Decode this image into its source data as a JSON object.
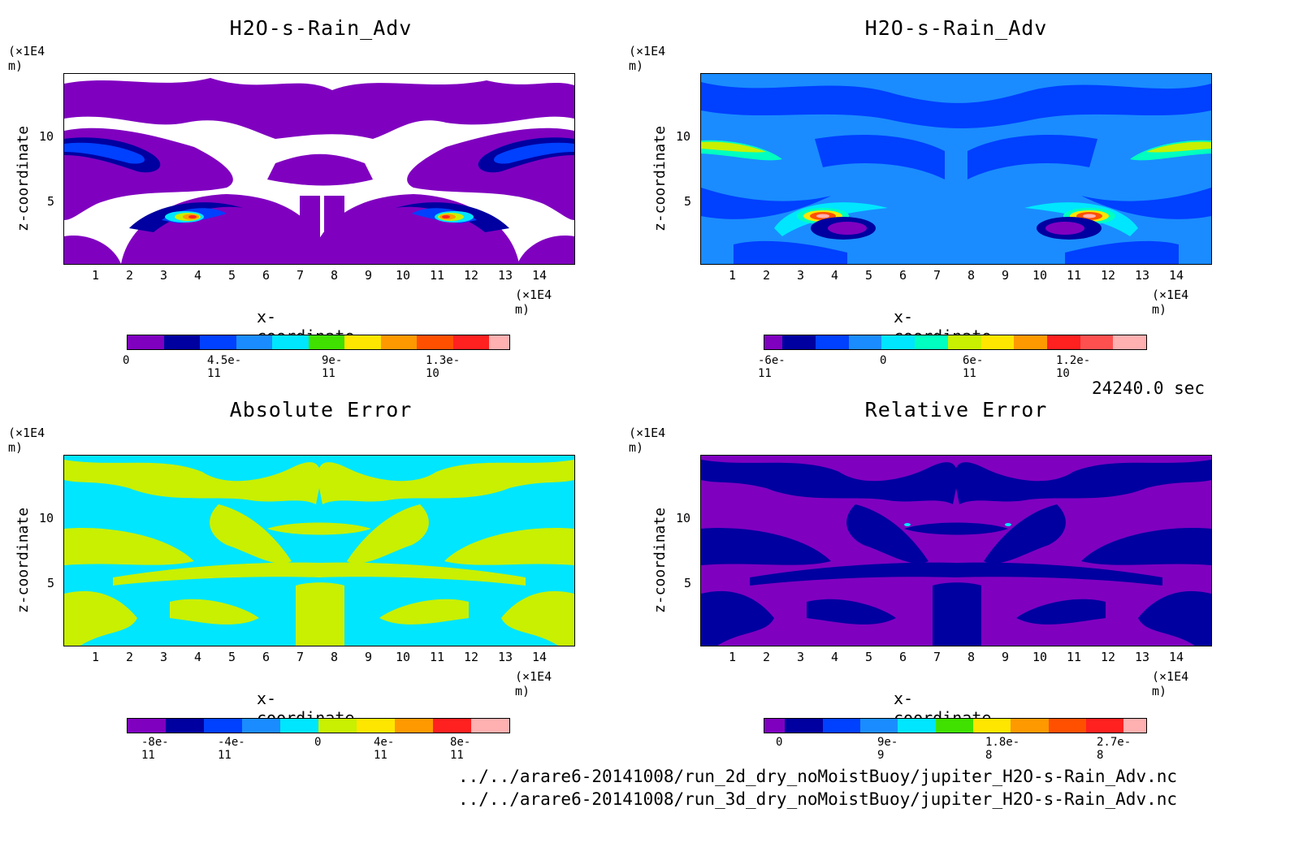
{
  "panels": [
    {
      "title": "H2O-s-Rain_Adv",
      "yunit": "(×1E4 m)",
      "xunit": "(×1E4 m)",
      "ylabel": "z-coordinate",
      "xlabel": "x-coordinate",
      "xticks": [
        "1",
        "2",
        "3",
        "4",
        "5",
        "6",
        "7",
        "8",
        "9",
        "10",
        "11",
        "12",
        "13",
        "14"
      ],
      "yticks": [
        "10",
        "5"
      ],
      "cbar_labels": [
        "0",
        "4.5e-11",
        "9e-11",
        "1.3e-10"
      ]
    },
    {
      "title": "H2O-s-Rain_Adv",
      "yunit": "(×1E4 m)",
      "xunit": "(×1E4 m)",
      "ylabel": "z-coordinate",
      "xlabel": "x-coordinate",
      "xticks": [
        "1",
        "2",
        "3",
        "4",
        "5",
        "6",
        "7",
        "8",
        "9",
        "10",
        "11",
        "12",
        "13",
        "14"
      ],
      "yticks": [
        "10",
        "5"
      ],
      "cbar_labels": [
        "-6e-11",
        "0",
        "6e-11",
        "1.2e-10"
      ]
    },
    {
      "title": "Absolute Error",
      "yunit": "(×1E4 m)",
      "xunit": "(×1E4 m)",
      "ylabel": "z-coordinate",
      "xlabel": "x-coordinate",
      "xticks": [
        "1",
        "2",
        "3",
        "4",
        "5",
        "6",
        "7",
        "8",
        "9",
        "10",
        "11",
        "12",
        "13",
        "14"
      ],
      "yticks": [
        "10",
        "5"
      ],
      "cbar_labels": [
        "-8e-11",
        "-4e-11",
        "0",
        "4e-11",
        "8e-11"
      ]
    },
    {
      "title": "Relative Error",
      "yunit": "(×1E4 m)",
      "xunit": "(×1E4 m)",
      "ylabel": "z-coordinate",
      "xlabel": "x-coordinate",
      "xticks": [
        "1",
        "2",
        "3",
        "4",
        "5",
        "6",
        "7",
        "8",
        "9",
        "10",
        "11",
        "12",
        "13",
        "14"
      ],
      "yticks": [
        "10",
        "5"
      ],
      "cbar_labels": [
        "0",
        "9e-9",
        "1.8e-8",
        "2.7e-8"
      ]
    }
  ],
  "time_label": "24240.0 sec",
  "files": [
    "../../arare6-20141008/run_2d_dry_noMoistBuoy/jupiter_H2O-s-Rain_Adv.nc",
    "../../arare6-20141008/run_3d_dry_noMoistBuoy/jupiter_H2O-s-Rain_Adv.nc"
  ],
  "colors": {
    "purple": "#8000c0",
    "navy": "#0000a0",
    "blue": "#0040ff",
    "midblue": "#1a8cff",
    "cyan": "#00e6ff",
    "teal": "#00ffc0",
    "green": "#40e000",
    "yellowgreen": "#c8f000",
    "yellow": "#ffe600",
    "orange": "#ff9900",
    "redorange": "#ff5000",
    "red": "#ff2020",
    "pink": "#ffb0b0"
  },
  "chart_data": [
    {
      "type": "heatmap",
      "title": "H2O-s-Rain_Adv",
      "xlabel": "x-coordinate",
      "ylabel": "z-coordinate",
      "xunit": "(×1E4 m)",
      "yunit": "(×1E4 m)",
      "xlim": [
        0,
        15
      ],
      "ylim": [
        0,
        15
      ],
      "xticks": [
        1,
        2,
        3,
        4,
        5,
        6,
        7,
        8,
        9,
        10,
        11,
        12,
        13,
        14
      ],
      "yticks": [
        5,
        10
      ],
      "colorbar_ticks": [
        0,
        4.5e-11,
        9e-11,
        1.3e-10
      ],
      "colorbar_range": [
        0,
        1.5e-10
      ]
    },
    {
      "type": "heatmap",
      "title": "H2O-s-Rain_Adv",
      "xlabel": "x-coordinate",
      "ylabel": "z-coordinate",
      "xunit": "(×1E4 m)",
      "yunit": "(×1E4 m)",
      "xlim": [
        0,
        15
      ],
      "ylim": [
        0,
        15
      ],
      "xticks": [
        1,
        2,
        3,
        4,
        5,
        6,
        7,
        8,
        9,
        10,
        11,
        12,
        13,
        14
      ],
      "yticks": [
        5,
        10
      ],
      "colorbar_ticks": [
        -6e-11,
        0,
        6e-11,
        1.2e-10
      ],
      "colorbar_range": [
        -9e-11,
        1.5e-10
      ]
    },
    {
      "type": "heatmap",
      "title": "Absolute Error",
      "xlabel": "x-coordinate",
      "ylabel": "z-coordinate",
      "xunit": "(×1E4 m)",
      "yunit": "(×1E4 m)",
      "xlim": [
        0,
        15
      ],
      "ylim": [
        0,
        15
      ],
      "xticks": [
        1,
        2,
        3,
        4,
        5,
        6,
        7,
        8,
        9,
        10,
        11,
        12,
        13,
        14
      ],
      "yticks": [
        5,
        10
      ],
      "colorbar_ticks": [
        -8e-11,
        -4e-11,
        0,
        4e-11,
        8e-11
      ],
      "colorbar_range": [
        -1e-10,
        1e-10
      ]
    },
    {
      "type": "heatmap",
      "title": "Relative Error",
      "xlabel": "x-coordinate",
      "ylabel": "z-coordinate",
      "xunit": "(×1E4 m)",
      "yunit": "(×1E4 m)",
      "xlim": [
        0,
        15
      ],
      "ylim": [
        0,
        15
      ],
      "xticks": [
        1,
        2,
        3,
        4,
        5,
        6,
        7,
        8,
        9,
        10,
        11,
        12,
        13,
        14
      ],
      "yticks": [
        5,
        10
      ],
      "colorbar_ticks": [
        0,
        9e-09,
        1.8e-08,
        2.7e-08
      ],
      "colorbar_range": [
        0,
        3e-08
      ]
    }
  ]
}
